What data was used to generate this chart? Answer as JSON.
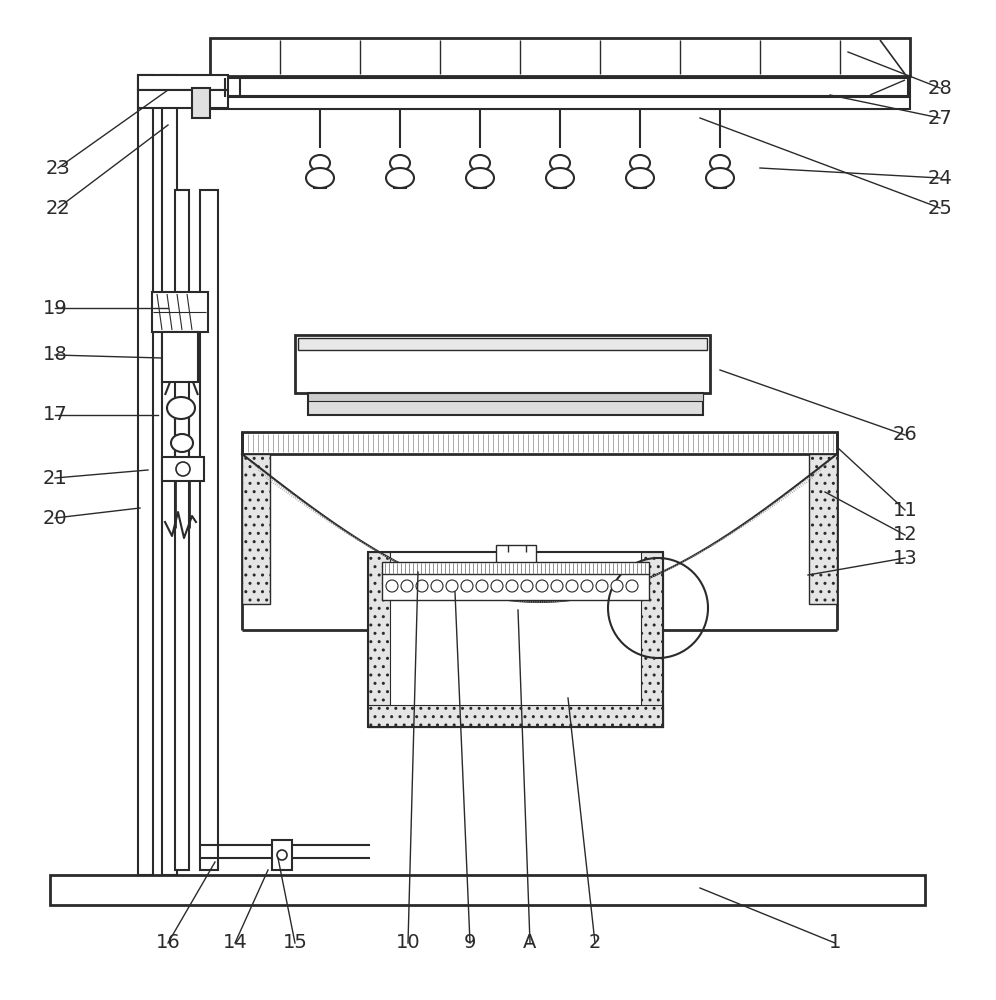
{
  "bg_color": "#ffffff",
  "lc": "#2a2a2a",
  "label_fontsize": 14,
  "labels_config": [
    [
      "28",
      848,
      52,
      940,
      88
    ],
    [
      "27",
      830,
      95,
      940,
      118
    ],
    [
      "24",
      760,
      168,
      940,
      178
    ],
    [
      "25",
      700,
      118,
      940,
      208
    ],
    [
      "26",
      720,
      370,
      905,
      435
    ],
    [
      "11",
      838,
      448,
      905,
      510
    ],
    [
      "12",
      825,
      492,
      905,
      535
    ],
    [
      "13",
      808,
      575,
      905,
      558
    ],
    [
      "23",
      168,
      90,
      58,
      168
    ],
    [
      "22",
      168,
      125,
      58,
      208
    ],
    [
      "19",
      168,
      308,
      55,
      308
    ],
    [
      "18",
      162,
      358,
      55,
      355
    ],
    [
      "17",
      158,
      415,
      55,
      415
    ],
    [
      "21",
      148,
      470,
      55,
      478
    ],
    [
      "20",
      140,
      508,
      55,
      518
    ],
    [
      "16",
      215,
      862,
      168,
      943
    ],
    [
      "14",
      268,
      870,
      235,
      943
    ],
    [
      "15",
      278,
      858,
      295,
      943
    ],
    [
      "10",
      418,
      572,
      408,
      943
    ],
    [
      "9",
      455,
      592,
      470,
      943
    ],
    [
      "A",
      518,
      610,
      530,
      943
    ],
    [
      "2",
      568,
      698,
      595,
      943
    ],
    [
      "1",
      700,
      888,
      835,
      943
    ]
  ]
}
